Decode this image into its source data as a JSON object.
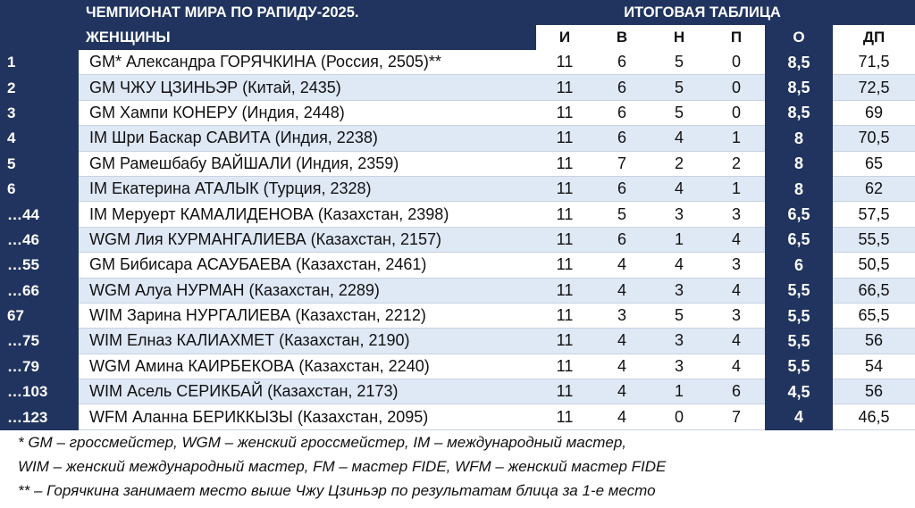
{
  "header": {
    "title_line1": "ЧЕМПИОНАТ МИРА ПО РАПИДУ-2025.",
    "title_line2": "ЖЕНЩИНЫ",
    "title_right": "ИТОГОВАЯ ТАБЛИЦА"
  },
  "columns": [
    "И",
    "В",
    "Н",
    "П",
    "О",
    "ДП"
  ],
  "rows": [
    {
      "place": "1",
      "name": "GM* Александра ГОРЯЧКИНА (Россия, 2505)**",
      "i": "11",
      "v": "6",
      "n": "5",
      "p": "0",
      "o": "8,5",
      "dp": "71,5"
    },
    {
      "place": "2",
      "name": "GM ЧЖУ ЦЗИНЬЭР (Китай, 2435)",
      "i": "11",
      "v": "6",
      "n": "5",
      "p": "0",
      "o": "8,5",
      "dp": "72,5"
    },
    {
      "place": "3",
      "name": "GM Хампи КОНЕРУ (Индия, 2448)",
      "i": "11",
      "v": "6",
      "n": "5",
      "p": "0",
      "o": "8,5",
      "dp": "69"
    },
    {
      "place": "4",
      "name": "IM Шри Баскар САВИТА (Индия, 2238)",
      "i": "11",
      "v": "6",
      "n": "4",
      "p": "1",
      "o": "8",
      "dp": "70,5"
    },
    {
      "place": "5",
      "name": "GM Рамешбабу ВАЙШАЛИ (Индия, 2359)",
      "i": "11",
      "v": "7",
      "n": "2",
      "p": "2",
      "o": "8",
      "dp": "65"
    },
    {
      "place": "6",
      "name": "IM Екатерина АТАЛЫК (Турция, 2328)",
      "i": "11",
      "v": "6",
      "n": "4",
      "p": "1",
      "o": "8",
      "dp": "62"
    },
    {
      "place": "…44",
      "name": "IM Меруерт КАМАЛИДЕНОВА (Казахстан, 2398)",
      "i": "11",
      "v": "5",
      "n": "3",
      "p": "3",
      "o": "6,5",
      "dp": "57,5"
    },
    {
      "place": "…46",
      "name": "WGM Лия КУРМАНГАЛИЕВА (Казахстан, 2157)",
      "i": "11",
      "v": "6",
      "n": "1",
      "p": "4",
      "o": "6,5",
      "dp": "55,5"
    },
    {
      "place": "…55",
      "name": "GM Бибисара АСАУБАЕВА (Казахстан, 2461)",
      "i": "11",
      "v": "4",
      "n": "4",
      "p": "3",
      "o": "6",
      "dp": "50,5"
    },
    {
      "place": "…66",
      "name": "WGM Алуа НУРМАН (Казахстан, 2289)",
      "i": "11",
      "v": "4",
      "n": "3",
      "p": "4",
      "o": "5,5",
      "dp": "66,5"
    },
    {
      "place": "67",
      "name": "WIM Зарина НУРГАЛИЕВА (Казахстан, 2212)",
      "i": "11",
      "v": "3",
      "n": "5",
      "p": "3",
      "o": "5,5",
      "dp": "65,5"
    },
    {
      "place": "…75",
      "name": "WIM Елназ КАЛИАХМЕТ (Казахстан, 2190)",
      "i": "11",
      "v": "4",
      "n": "3",
      "p": "4",
      "o": "5,5",
      "dp": "56"
    },
    {
      "place": "…79",
      "name": "WGM Амина КАИРБЕКОВА (Казахстан, 2240)",
      "i": "11",
      "v": "4",
      "n": "3",
      "p": "4",
      "o": "5,5",
      "dp": "54"
    },
    {
      "place": "…103",
      "name": "WIM Асель СЕРИКБАЙ (Казахстан, 2173)",
      "i": "11",
      "v": "4",
      "n": "1",
      "p": "6",
      "o": "4,5",
      "dp": "56"
    },
    {
      "place": "…123",
      "name": "WFM Аланна БЕРИККЫЗЫ (Казахстан, 2095)",
      "i": "11",
      "v": "4",
      "n": "0",
      "p": "7",
      "o": "4",
      "dp": "46,5"
    }
  ],
  "footnotes": [
    "* GM – гроссмейстер, WGM – женский гроссмейстер, IM – международный мастер,",
    "WIM – женский международный мастер, FM – мастер FIDE, WFM – женский мастер FIDE",
    "** – Горячкина занимает место выше Чжу Цзиньэр по результатам блица за 1-е место"
  ],
  "colors": {
    "navy": "#21345f",
    "stripe": "#dfe8f5",
    "white": "#ffffff"
  }
}
